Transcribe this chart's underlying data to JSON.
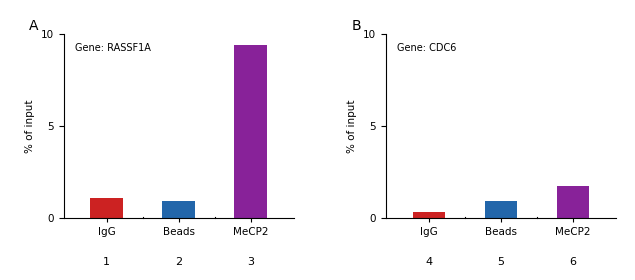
{
  "panel_A": {
    "label": "A",
    "gene_annotation": "Gene: RASSF1A",
    "categories": [
      "IgG",
      "Beads",
      "MeCP2"
    ],
    "x_numbers": [
      "1",
      "2",
      "3"
    ],
    "values": [
      1.1,
      0.95,
      9.4
    ],
    "colors": [
      "#cc2222",
      "#2266aa",
      "#882299"
    ],
    "ylim": [
      0,
      10
    ],
    "yticks": [
      0,
      5,
      10
    ],
    "ylabel": "% of input"
  },
  "panel_B": {
    "label": "B",
    "gene_annotation": "Gene: CDC6",
    "categories": [
      "IgG",
      "Beads",
      "MeCP2"
    ],
    "x_numbers": [
      "4",
      "5",
      "6"
    ],
    "values": [
      0.35,
      0.95,
      1.75
    ],
    "colors": [
      "#cc2222",
      "#2266aa",
      "#882299"
    ],
    "ylim": [
      0,
      10
    ],
    "yticks": [
      0,
      5,
      10
    ],
    "ylabel": "% of input"
  },
  "background_color": "#ffffff",
  "bar_width": 0.45,
  "annotation_fontsize": 7,
  "panel_label_fontsize": 10,
  "tick_fontsize": 7.5,
  "ylabel_fontsize": 7.5,
  "number_fontsize": 8
}
